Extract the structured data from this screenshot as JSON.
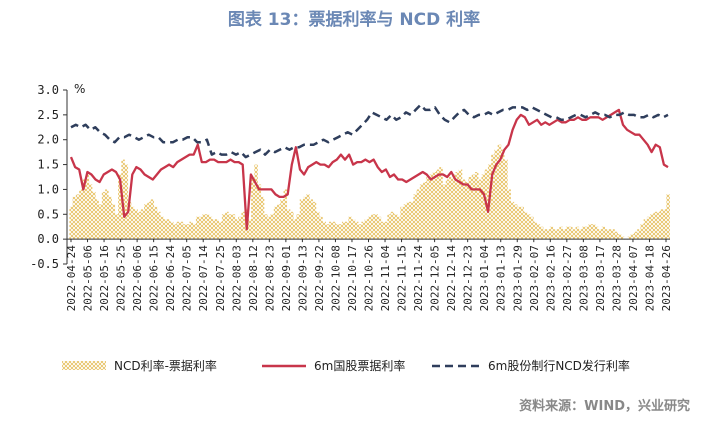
{
  "chart_data": {
    "type": "line",
    "title": "图表 13：票据利率与 NCD 利率",
    "ylabel": "%",
    "xlabel": "",
    "ylim": [
      -0.5,
      3.0
    ],
    "yticks": [
      "3.0",
      "2.5",
      "2.0",
      "1.5",
      "1.0",
      "0.5",
      "0.0",
      "-0.5"
    ],
    "ytick_values": [
      3.0,
      2.5,
      2.0,
      1.5,
      1.0,
      0.5,
      0.0,
      -0.5
    ],
    "xticks": [
      "2022-04-24",
      "2022-05-06",
      "2022-05-16",
      "2022-05-25",
      "2022-06-06",
      "2022-06-15",
      "2022-06-24",
      "2022-07-05",
      "2022-07-14",
      "2022-07-25",
      "2022-08-03",
      "2022-08-12",
      "2022-08-23",
      "2022-09-01",
      "2022-09-13",
      "2022-09-22",
      "2022-10-08",
      "2022-10-17",
      "2022-10-26",
      "2022-11-04",
      "2022-11-15",
      "2022-11-24",
      "2022-12-05",
      "2022-12-14",
      "2022-12-23",
      "2023-01-04",
      "2023-01-13",
      "2023-01-29",
      "2023-02-07",
      "2023-02-16",
      "2023-02-27",
      "2023-03-08",
      "2023-03-17",
      "2023-03-28",
      "2023-04-07",
      "2023-04-18",
      "2023-04-26"
    ],
    "grid": false,
    "legend_position": "bottom",
    "series": [
      {
        "name": "NCD利率-票据利率",
        "kind": "area-hatched",
        "color": "#e3b84a",
        "values": [
          0.65,
          0.85,
          0.9,
          1.0,
          1.2,
          1.3,
          1.1,
          0.95,
          0.8,
          0.7,
          0.95,
          1.0,
          0.85,
          0.7,
          0.5,
          1.3,
          1.6,
          1.5,
          0.75,
          0.65,
          0.6,
          0.55,
          0.6,
          0.7,
          0.75,
          0.8,
          0.65,
          0.55,
          0.45,
          0.4,
          0.4,
          0.35,
          0.3,
          0.35,
          0.35,
          0.3,
          0.3,
          0.35,
          0.3,
          0.45,
          0.45,
          0.5,
          0.5,
          0.45,
          0.4,
          0.4,
          0.35,
          0.5,
          0.55,
          0.5,
          0.5,
          0.4,
          0.45,
          0.55,
          0.6,
          0.4,
          1.2,
          1.5,
          1.1,
          0.85,
          0.5,
          0.45,
          0.5,
          0.65,
          0.7,
          0.8,
          1.0,
          0.6,
          0.55,
          0.4,
          0.5,
          0.8,
          0.85,
          0.9,
          0.8,
          0.75,
          0.55,
          0.45,
          0.35,
          0.3,
          0.35,
          0.35,
          0.3,
          0.3,
          0.35,
          0.35,
          0.45,
          0.4,
          0.35,
          0.3,
          0.35,
          0.4,
          0.45,
          0.5,
          0.5,
          0.45,
          0.35,
          0.35,
          0.5,
          0.55,
          0.5,
          0.45,
          0.65,
          0.7,
          0.75,
          0.75,
          0.9,
          1.0,
          1.1,
          1.15,
          1.25,
          1.3,
          1.35,
          1.4,
          1.45,
          1.1,
          1.2,
          1.25,
          1.3,
          1.35,
          1.4,
          1.2,
          1.15,
          1.25,
          1.3,
          1.35,
          1.2,
          1.3,
          1.4,
          1.5,
          1.7,
          1.8,
          1.9,
          1.8,
          1.6,
          1.0,
          0.75,
          0.7,
          0.65,
          0.65,
          0.55,
          0.5,
          0.45,
          0.35,
          0.3,
          0.25,
          0.2,
          0.2,
          0.25,
          0.2,
          0.2,
          0.25,
          0.2,
          0.25,
          0.25,
          0.2,
          0.25,
          0.2,
          0.25,
          0.25,
          0.3,
          0.3,
          0.25,
          0.2,
          0.25,
          0.2,
          0.2,
          0.2,
          0.15,
          0.1,
          0.05,
          0.0,
          0.05,
          0.1,
          0.15,
          0.2,
          0.3,
          0.4,
          0.45,
          0.5,
          0.55,
          0.55,
          0.6,
          0.6,
          0.9
        ]
      },
      {
        "name": "6m国股票据利率",
        "kind": "line",
        "color": "#c8354a",
        "values": [
          1.65,
          1.45,
          1.4,
          1.0,
          1.35,
          1.3,
          1.2,
          1.15,
          1.3,
          1.35,
          1.4,
          1.35,
          1.2,
          0.45,
          0.55,
          1.3,
          1.45,
          1.4,
          1.3,
          1.25,
          1.2,
          1.3,
          1.4,
          1.45,
          1.5,
          1.45,
          1.55,
          1.6,
          1.65,
          1.7,
          1.7,
          1.9,
          1.55,
          1.55,
          1.6,
          1.6,
          1.55,
          1.55,
          1.55,
          1.6,
          1.55,
          1.55,
          1.5,
          0.2,
          1.3,
          1.15,
          1.0,
          1.0,
          1.0,
          1.0,
          0.9,
          0.85,
          0.85,
          0.9,
          1.5,
          1.85,
          1.4,
          1.3,
          1.45,
          1.5,
          1.55,
          1.5,
          1.5,
          1.45,
          1.55,
          1.6,
          1.7,
          1.6,
          1.7,
          1.5,
          1.55,
          1.55,
          1.6,
          1.55,
          1.6,
          1.45,
          1.35,
          1.4,
          1.25,
          1.3,
          1.2,
          1.2,
          1.15,
          1.2,
          1.25,
          1.3,
          1.35,
          1.3,
          1.2,
          1.25,
          1.3,
          1.3,
          1.25,
          1.35,
          1.2,
          1.15,
          1.1,
          1.1,
          1.0,
          1.0,
          1.0,
          0.9,
          0.55,
          1.3,
          1.5,
          1.6,
          1.8,
          1.9,
          2.2,
          2.4,
          2.5,
          2.45,
          2.3,
          2.35,
          2.4,
          2.3,
          2.35,
          2.3,
          2.35,
          2.4,
          2.35,
          2.35,
          2.4,
          2.4,
          2.45,
          2.4,
          2.4,
          2.45,
          2.45,
          2.45,
          2.4,
          2.45,
          2.5,
          2.55,
          2.6,
          2.3,
          2.2,
          2.15,
          2.1,
          2.1,
          2.0,
          1.9,
          1.75,
          1.9,
          1.85,
          1.5,
          1.45
        ]
      },
      {
        "name": "6m股份制行NCD发行利率",
        "kind": "dashed-line",
        "color": "#2f3e5c",
        "values": [
          2.25,
          2.3,
          2.25,
          2.3,
          2.2,
          2.25,
          2.15,
          2.1,
          2.0,
          1.95,
          2.05,
          2.05,
          2.1,
          2.05,
          2.0,
          2.05,
          2.1,
          2.05,
          2.05,
          1.95,
          1.95,
          1.95,
          2.0,
          2.0,
          2.05,
          2.05,
          1.95,
          1.95,
          2.0,
          1.7,
          1.75,
          1.7,
          1.7,
          1.75,
          1.7,
          1.75,
          1.65,
          1.7,
          1.75,
          1.8,
          1.7,
          1.8,
          1.75,
          1.8,
          1.85,
          1.8,
          1.85,
          1.85,
          1.9,
          1.9,
          1.9,
          1.95,
          2.0,
          1.95,
          2.0,
          2.05,
          2.1,
          2.15,
          2.1,
          2.2,
          2.3,
          2.4,
          2.55,
          2.5,
          2.45,
          2.4,
          2.5,
          2.4,
          2.45,
          2.55,
          2.5,
          2.6,
          2.7,
          2.6,
          2.6,
          2.65,
          2.5,
          2.4,
          2.35,
          2.45,
          2.55,
          2.6,
          2.5,
          2.45,
          2.5,
          2.5,
          2.55,
          2.5,
          2.55,
          2.6,
          2.6,
          2.65,
          2.65,
          2.65,
          2.6,
          2.65,
          2.6,
          2.55,
          2.5,
          2.45,
          2.45,
          2.4,
          2.4,
          2.45,
          2.5,
          2.5,
          2.45,
          2.5,
          2.55,
          2.5,
          2.5,
          2.45,
          2.5,
          2.5,
          2.55,
          2.5,
          2.5,
          2.45,
          2.45,
          2.5,
          2.45,
          2.5,
          2.45,
          2.5
        ]
      }
    ]
  },
  "source": "资料来源：WIND，兴业研究",
  "colors": {
    "title": "#6b88b5",
    "axis": "#333333",
    "text": "#222222",
    "source": "#888888"
  }
}
